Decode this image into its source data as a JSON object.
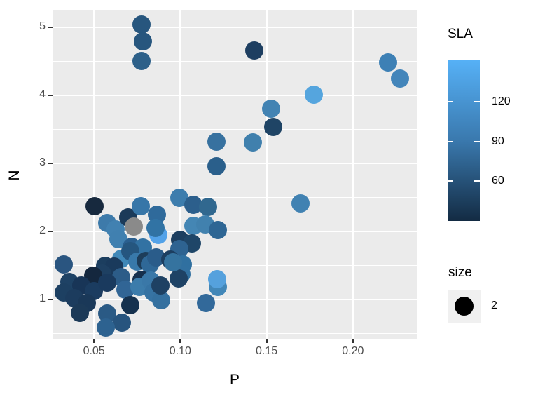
{
  "chart_data": {
    "type": "scatter",
    "xlabel": "P",
    "ylabel": "N",
    "x_range": [
      0.026,
      0.237
    ],
    "y_range": [
      0.42,
      5.26
    ],
    "x_ticks": [
      0.05,
      0.1,
      0.15,
      0.2
    ],
    "x_tick_labels": [
      "0.05",
      "0.10",
      "0.15",
      "0.20"
    ],
    "x_minor_ticks": [
      0.075,
      0.125,
      0.175,
      0.225
    ],
    "y_ticks": [
      1,
      2,
      3,
      4,
      5
    ],
    "y_tick_labels": [
      "1",
      "2",
      "3",
      "4",
      "5"
    ],
    "y_minor_ticks": [
      0.5,
      1.5,
      2.5,
      3.5,
      4.5
    ],
    "grid": true,
    "panel_bg": "#EBEBEB",
    "grid_color": "#FFFFFF",
    "tick_label_color": "#4D4D4D",
    "na_point_color": "#8A8A8A",
    "point_size_mm": 2,
    "points": [
      [
        0.0502,
        2.37,
        "#17293E"
      ],
      [
        0.0575,
        2.12,
        "#3D7AAA"
      ],
      [
        0.0624,
        2.03,
        "#4181B1"
      ],
      [
        0.0697,
        2.21,
        "#1B3A59"
      ],
      [
        0.0729,
        2.07,
        "#8A8A8A"
      ],
      [
        0.077,
        2.37,
        "#3776A8"
      ],
      [
        0.0863,
        2.25,
        "#2F6A9B"
      ],
      [
        0.0871,
        1.95,
        "#53A2E8"
      ],
      [
        0.0855,
        2.05,
        "#3173A4"
      ],
      [
        0.064,
        1.89,
        "#4080B0"
      ],
      [
        0.0717,
        1.77,
        "#2A5F8F"
      ],
      [
        0.0993,
        2.49,
        "#3D7DAD"
      ],
      [
        0.1074,
        2.39,
        "#2C5F8C"
      ],
      [
        0.1159,
        2.36,
        "#31688F"
      ],
      [
        0.1074,
        2.08,
        "#4486B4"
      ],
      [
        0.1143,
        2.1,
        "#4181AE"
      ],
      [
        0.1216,
        2.02,
        "#2E6694"
      ],
      [
        0.0997,
        1.88,
        "#1D3F60"
      ],
      [
        0.1066,
        1.82,
        "#1F4668"
      ],
      [
        0.0656,
        1.6,
        "#4088B8"
      ],
      [
        0.0782,
        1.76,
        "#3272A3"
      ],
      [
        0.0709,
        1.71,
        "#25567F"
      ],
      [
        0.0749,
        1.56,
        "#3879AA"
      ],
      [
        0.0798,
        1.57,
        "#1D3D5A"
      ],
      [
        0.0826,
        1.51,
        "#2F6897"
      ],
      [
        0.0859,
        1.62,
        "#2A5C8A"
      ],
      [
        0.0563,
        1.49,
        "#1C3E5F"
      ],
      [
        0.0616,
        1.48,
        "#1A3A5C"
      ],
      [
        0.0993,
        1.74,
        "#2E6391"
      ],
      [
        0.094,
        1.59,
        "#1C3E60"
      ],
      [
        0.1013,
        1.51,
        "#3070A0"
      ],
      [
        0.1005,
        1.37,
        "#3170A0"
      ],
      [
        0.0989,
        1.31,
        "#1E4265"
      ],
      [
        0.0956,
        1.54,
        "#35739F"
      ],
      [
        0.0324,
        1.51,
        "#2A5580"
      ],
      [
        0.0547,
        1.38,
        "#1E4062"
      ],
      [
        0.0656,
        1.33,
        "#2C5C88"
      ],
      [
        0.0494,
        1.35,
        "#14273E"
      ],
      [
        0.0774,
        1.29,
        "#16304D"
      ],
      [
        0.0356,
        1.26,
        "#1E4265"
      ],
      [
        0.0324,
        1.1,
        "#1D4062"
      ],
      [
        0.0425,
        1.2,
        "#183557"
      ],
      [
        0.0498,
        1.12,
        "#1B3C60"
      ],
      [
        0.0575,
        1.25,
        "#1A3A5E"
      ],
      [
        0.068,
        1.14,
        "#316595"
      ],
      [
        0.0762,
        1.18,
        "#3C7CAB"
      ],
      [
        0.083,
        1.28,
        "#3A78A8"
      ],
      [
        0.0843,
        1.1,
        "#3673A3"
      ],
      [
        0.0887,
        0.99,
        "#34709F"
      ],
      [
        0.0883,
        1.2,
        "#1E4163"
      ],
      [
        0.0384,
        1.02,
        "#1C3C5E"
      ],
      [
        0.0457,
        0.95,
        "#1A3858"
      ],
      [
        0.042,
        0.8,
        "#1C3A58"
      ],
      [
        0.1216,
        1.18,
        "#4287B8"
      ],
      [
        0.1212,
        1.3,
        "#55A1DD"
      ],
      [
        0.1147,
        0.95,
        "#32699A"
      ],
      [
        0.0709,
        0.92,
        "#15314E"
      ],
      [
        0.0575,
        0.79,
        "#2A5A85"
      ],
      [
        0.066,
        0.66,
        "#27547E"
      ],
      [
        0.0567,
        0.59,
        "#2D6290"
      ],
      [
        0.0774,
        5.04,
        "#27567E"
      ],
      [
        0.0782,
        4.8,
        "#27567E"
      ],
      [
        0.0774,
        4.51,
        "#2D6089"
      ],
      [
        0.1427,
        4.66,
        "#1E3F61"
      ],
      [
        0.2205,
        4.49,
        "#3D80B5"
      ],
      [
        0.2274,
        4.25,
        "#4385BA"
      ],
      [
        0.1775,
        4.01,
        "#55A5DE"
      ],
      [
        0.1528,
        3.8,
        "#4283B3"
      ],
      [
        0.154,
        3.54,
        "#1F4465"
      ],
      [
        0.1208,
        3.32,
        "#37719F"
      ],
      [
        0.1419,
        3.31,
        "#4080AD"
      ],
      [
        0.1208,
        2.96,
        "#2A5F8B"
      ],
      [
        0.1698,
        2.41,
        "#4182B2"
      ]
    ]
  },
  "legends": {
    "color": {
      "title": "SLA",
      "tick_labels": [
        "120",
        "90",
        "60"
      ],
      "tick_values": [
        120,
        90,
        60
      ],
      "gradient_top": "#56B1F7",
      "gradient_mid": "#3A79AE",
      "gradient_bottom": "#132B43"
    },
    "size": {
      "title": "size",
      "items": [
        {
          "label": "2",
          "dot_color": "#000000"
        }
      ]
    }
  }
}
